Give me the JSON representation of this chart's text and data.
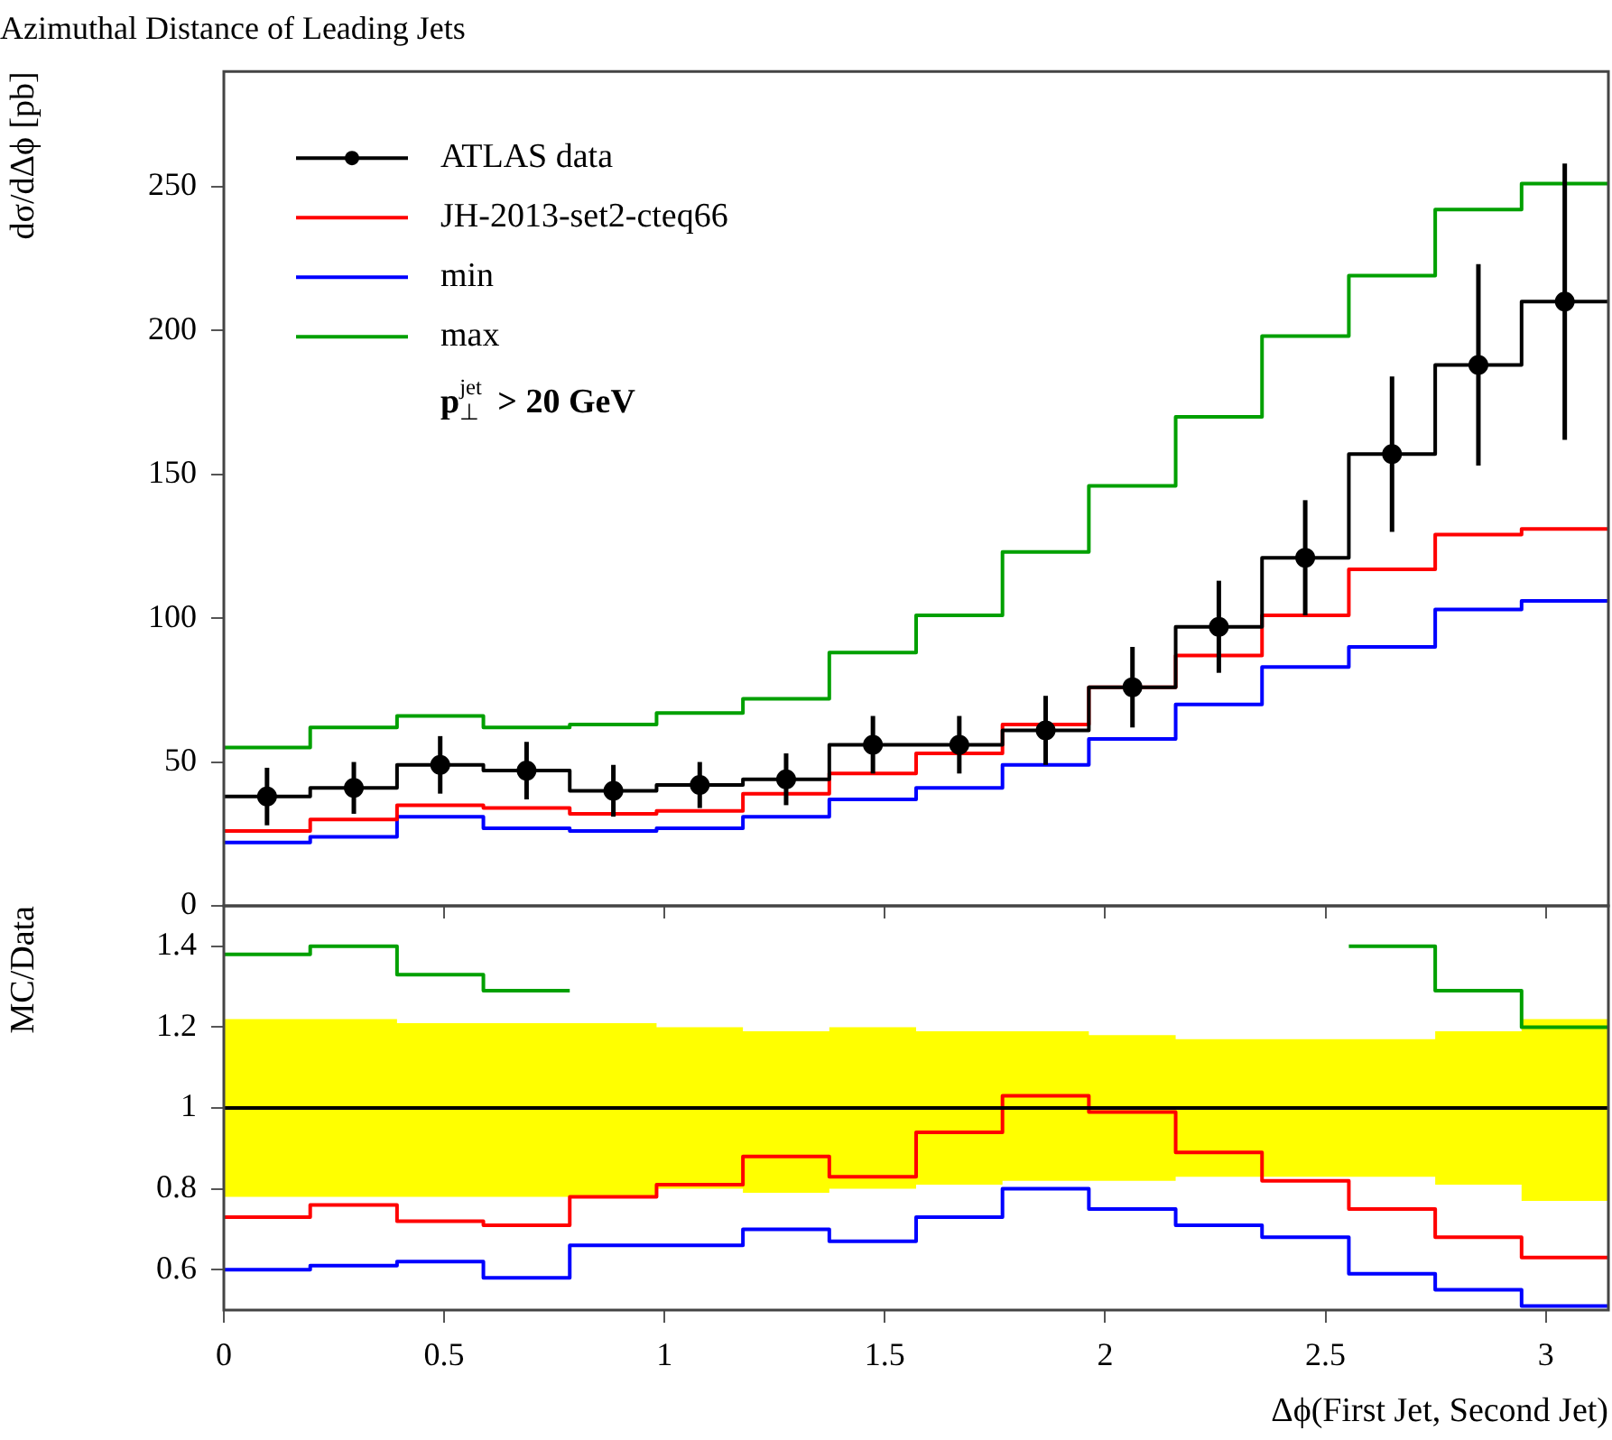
{
  "chart_data": [
    {
      "type": "step",
      "title": "Azimuthal Distance of Leading Jets",
      "ylabel": "dσ/dΔϕ [pb]",
      "x": [
        0,
        0.196,
        0.393,
        0.589,
        0.785,
        0.982,
        1.178,
        1.374,
        1.571,
        1.767,
        1.963,
        2.16,
        2.356,
        2.553,
        2.749,
        2.945,
        3.142
      ],
      "series": [
        {
          "color": "#000000",
          "values": [
            38,
            41,
            49,
            47,
            40,
            42,
            44,
            56,
            56,
            61,
            76,
            97,
            121,
            157,
            188,
            210,
            210
          ]
        },
        {
          "type": "scatter",
          "name": "ATLAS data",
          "color": "#000000",
          "marker": "circle",
          "x": [
            0.098,
            0.295,
            0.491,
            0.687,
            0.884,
            1.08,
            1.276,
            1.473,
            1.669,
            1.865,
            2.062,
            2.258,
            2.454,
            2.651,
            2.847,
            3.043
          ],
          "values": [
            38,
            41,
            49,
            47,
            40,
            42,
            44,
            56,
            56,
            61,
            76,
            97,
            121,
            157,
            188,
            210
          ],
          "errors": [
            10,
            9,
            10,
            10,
            9,
            8,
            9,
            10,
            10,
            12,
            14,
            16,
            20,
            27,
            35,
            48
          ]
        },
        {
          "name": "JH-2013-set2-cteq66",
          "color": "#ff0000",
          "values": [
            26,
            30,
            35,
            34,
            32,
            33,
            39,
            46,
            53,
            63,
            76,
            87,
            101,
            117,
            129,
            131,
            131
          ]
        },
        {
          "name": "min",
          "color": "#0000ff",
          "values": [
            22,
            24,
            31,
            27,
            26,
            27,
            31,
            37,
            41,
            49,
            58,
            70,
            83,
            90,
            103,
            106,
            106
          ]
        },
        {
          "name": "max",
          "color": "#00a000",
          "values": [
            55,
            62,
            66,
            62,
            63,
            67,
            72,
            88,
            101,
            123,
            146,
            170,
            198,
            219,
            242,
            251,
            251
          ]
        }
      ],
      "annotations": [
        "p$^{jet}$$_{⊥}$ > 20 GeV"
      ],
      "xlim": [
        0,
        3.142
      ],
      "xticks": [
        0,
        0.5,
        1,
        1.5,
        2,
        2.5,
        3
      ],
      "ylim": [
        0,
        290
      ],
      "yticks": [
        0,
        50,
        100,
        150,
        200,
        250
      ],
      "tick_labels": "y",
      "legend": "top left"
    },
    {
      "type": "step",
      "xlabel": "Δϕ(First Jet, Second Jet)",
      "ylabel": "MC/Data",
      "x": [
        0,
        0.196,
        0.393,
        0.589,
        0.785,
        0.982,
        1.178,
        1.374,
        1.571,
        1.767,
        1.963,
        2.16,
        2.356,
        2.553,
        2.749,
        2.945,
        3.142
      ],
      "series": [
        {
          "color": "#000000",
          "values": [
            1,
            1,
            1,
            1,
            1,
            1,
            1,
            1,
            1,
            1,
            1,
            1,
            1,
            1,
            1,
            1,
            1
          ],
          "lower": [
            0.78,
            0.78,
            0.78,
            0.78,
            0.78,
            0.8,
            0.79,
            0.8,
            0.81,
            0.82,
            0.82,
            0.83,
            0.83,
            0.83,
            0.81,
            0.77,
            0.77
          ],
          "upper": [
            1.22,
            1.22,
            1.21,
            1.21,
            1.21,
            1.2,
            1.19,
            1.2,
            1.19,
            1.19,
            1.18,
            1.17,
            1.17,
            1.17,
            1.19,
            1.22,
            1.22
          ]
        },
        {
          "color": "#ff0000",
          "values": [
            0.73,
            0.76,
            0.72,
            0.71,
            0.78,
            0.81,
            0.88,
            0.83,
            0.94,
            1.03,
            0.99,
            0.89,
            0.82,
            0.75,
            0.68,
            0.63,
            0.63
          ]
        },
        {
          "color": "#0000ff",
          "values": [
            0.6,
            0.61,
            0.62,
            0.58,
            0.66,
            0.66,
            0.7,
            0.67,
            0.73,
            0.8,
            0.75,
            0.71,
            0.68,
            0.59,
            0.55,
            0.51,
            0.51
          ]
        },
        {
          "color": "#00a000",
          "values": [
            1.38,
            1.4,
            1.33,
            1.29,
            null,
            null,
            null,
            null,
            null,
            null,
            null,
            null,
            null,
            1.4,
            1.29,
            1.2,
            1.2
          ]
        }
      ],
      "xlim": [
        0,
        3.142
      ],
      "xticks": [
        0,
        0.5,
        1,
        1.5,
        2,
        2.5,
        3
      ],
      "ylim": [
        0.5,
        1.5
      ],
      "yticks": [
        0.6,
        0.8,
        1,
        1.2,
        1.4
      ]
    }
  ]
}
